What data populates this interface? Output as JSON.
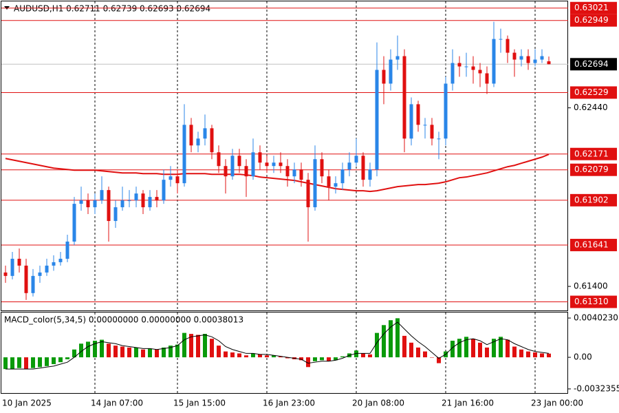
{
  "chart_data": [
    {
      "type": "candlestick",
      "title": "AUDUSD,H1  0.62711 0.62739 0.62693 0.62694",
      "categories": [
        "10 Jan 2025",
        null,
        null,
        null,
        null,
        null,
        null,
        null,
        null,
        null,
        null,
        null,
        null,
        "14 Jan 07:00",
        null,
        null,
        null,
        null,
        null,
        null,
        null,
        null,
        null,
        null,
        null,
        "15 Jan 15:00",
        null,
        null,
        null,
        null,
        null,
        null,
        null,
        null,
        null,
        null,
        null,
        null,
        "16 Jan 23:00",
        null,
        null,
        null,
        null,
        null,
        null,
        null,
        null,
        null,
        null,
        null,
        null,
        "20 Jan 08:00",
        null,
        null,
        null,
        null,
        null,
        null,
        null,
        null,
        null,
        null,
        null,
        null,
        "21 Jan 16:00",
        null,
        null,
        null,
        null,
        null,
        null,
        null,
        null,
        null,
        null,
        null,
        null,
        "23 Jan 00:00",
        null,
        null
      ],
      "open": [
        0.61481,
        0.61461,
        0.61561,
        0.61521,
        0.61361,
        0.61461,
        0.61481,
        0.61521,
        0.61541,
        0.61561,
        0.61661,
        0.61881,
        0.61901,
        0.61861,
        0.61901,
        0.61961,
        0.61781,
        0.61861,
        0.61901,
        0.61901,
        0.61941,
        0.61861,
        0.61921,
        0.61901,
        0.62021,
        0.62041,
        0.62001,
        0.62341,
        0.62221,
        0.62261,
        0.62321,
        0.62181,
        0.62101,
        0.62041,
        0.62161,
        0.62101,
        0.62041,
        0.62181,
        0.62121,
        0.62101,
        0.62121,
        0.62101,
        0.62041,
        0.62081,
        0.62021,
        0.61861,
        0.62141,
        0.62041,
        0.61981,
        0.62001,
        0.62081,
        0.62121,
        0.62161,
        0.62021,
        0.62081,
        0.62661,
        0.62581,
        0.62721,
        0.62741,
        0.62261,
        0.62461,
        0.62341,
        0.62341,
        0.62261,
        0.62261,
        0.62581,
        0.62701,
        0.62681,
        0.62681,
        0.62661,
        0.62641,
        0.62581,
        0.62841,
        0.62841,
        0.62761,
        0.62721,
        0.62741,
        0.62701,
        0.62721,
        0.62711
      ],
      "high": [
        0.61521,
        0.61601,
        0.61621,
        0.61561,
        0.61501,
        0.61521,
        0.61561,
        0.61581,
        0.61601,
        0.61701,
        0.61921,
        0.61981,
        0.61941,
        0.61941,
        0.62041,
        0.61981,
        0.61901,
        0.61981,
        0.61961,
        0.61981,
        0.61961,
        0.61961,
        0.61961,
        0.62081,
        0.62101,
        0.62081,
        0.62461,
        0.62381,
        0.62301,
        0.62401,
        0.62341,
        0.62221,
        0.62141,
        0.62201,
        0.62201,
        0.62141,
        0.62261,
        0.62221,
        0.62161,
        0.62161,
        0.62181,
        0.62141,
        0.62121,
        0.62121,
        0.62061,
        0.62221,
        0.62181,
        0.62081,
        0.62041,
        0.62121,
        0.62181,
        0.62261,
        0.62181,
        0.62121,
        0.62821,
        0.62741,
        0.62781,
        0.62861,
        0.62781,
        0.62501,
        0.62481,
        0.62381,
        0.62381,
        0.62301,
        0.62621,
        0.62781,
        0.62741,
        0.62761,
        0.62741,
        0.62701,
        0.62681,
        0.62941,
        0.62901,
        0.62861,
        0.62781,
        0.62781,
        0.62781,
        0.62781,
        0.62781,
        0.62739
      ],
      "low": [
        0.61421,
        0.61441,
        0.61481,
        0.61321,
        0.61341,
        0.61421,
        0.61461,
        0.61491,
        0.61521,
        0.61541,
        0.61641,
        0.61841,
        0.61821,
        0.61821,
        0.61881,
        0.61661,
        0.61741,
        0.61841,
        0.61861,
        0.61861,
        0.61821,
        0.61841,
        0.61861,
        0.61881,
        0.61981,
        0.61941,
        0.61981,
        0.62181,
        0.62181,
        0.62221,
        0.62141,
        0.62061,
        0.61941,
        0.62021,
        0.62061,
        0.61921,
        0.62021,
        0.62081,
        0.62061,
        0.62061,
        0.62061,
        0.61981,
        0.62001,
        0.61981,
        0.61661,
        0.61841,
        0.62001,
        0.61901,
        0.61941,
        0.61961,
        0.62041,
        0.62101,
        0.61981,
        0.61981,
        0.62041,
        0.62461,
        0.62541,
        0.62661,
        0.62181,
        0.62221,
        0.62301,
        0.62261,
        0.62221,
        0.62141,
        0.62221,
        0.62541,
        0.62621,
        0.62621,
        0.62581,
        0.62561,
        0.62521,
        0.62561,
        0.62761,
        0.62701,
        0.62621,
        0.62681,
        0.62661,
        0.62681,
        0.62701,
        0.62693
      ],
      "close": [
        0.61461,
        0.61561,
        0.61521,
        0.61361,
        0.61461,
        0.61481,
        0.61521,
        0.61541,
        0.61561,
        0.61661,
        0.61881,
        0.61901,
        0.61861,
        0.61901,
        0.61961,
        0.61781,
        0.61861,
        0.61901,
        0.61901,
        0.61941,
        0.61861,
        0.61921,
        0.61901,
        0.62021,
        0.62041,
        0.62001,
        0.62341,
        0.62221,
        0.62261,
        0.62321,
        0.62181,
        0.62101,
        0.62041,
        0.62161,
        0.62101,
        0.62041,
        0.62181,
        0.62121,
        0.62101,
        0.62121,
        0.62101,
        0.62041,
        0.62081,
        0.62021,
        0.61861,
        0.62141,
        0.62041,
        0.61981,
        0.62001,
        0.62081,
        0.62121,
        0.62161,
        0.62021,
        0.62081,
        0.62661,
        0.62581,
        0.62721,
        0.62741,
        0.62261,
        0.62461,
        0.62341,
        0.62341,
        0.62261,
        0.62261,
        0.62581,
        0.62701,
        0.62681,
        0.62681,
        0.62661,
        0.62641,
        0.62581,
        0.62841,
        0.62841,
        0.62761,
        0.62721,
        0.62741,
        0.62701,
        0.62721,
        0.62741,
        0.62694
      ],
      "up_color": "#2a86e8",
      "down_color": "#e01010",
      "lines": [
        {
          "color": "#e01010",
          "values": [
            0.62145,
            0.62137,
            0.62129,
            0.62121,
            0.62113,
            0.62105,
            0.62097,
            0.62089,
            0.62085,
            0.62081,
            0.62077,
            0.62077,
            0.62077,
            0.62077,
            0.62073,
            0.62069,
            0.62065,
            0.62061,
            0.62061,
            0.62061,
            0.62057,
            0.62057,
            0.62057,
            0.62053,
            0.62053,
            0.62053,
            0.62057,
            0.62057,
            0.62057,
            0.62057,
            0.62053,
            0.62053,
            0.62053,
            0.62053,
            0.62053,
            0.62049,
            0.62045,
            0.62037,
            0.62033,
            0.62029,
            0.62025,
            0.62021,
            0.62017,
            0.62009,
            0.62001,
            0.61993,
            0.61985,
            0.61977,
            0.61969,
            0.61965,
            0.61961,
            0.61957,
            0.61957,
            0.61953,
            0.61957,
            0.61965,
            0.61973,
            0.61981,
            0.61985,
            0.61989,
            0.61993,
            0.61993,
            0.61997,
            0.62001,
            0.62009,
            0.62021,
            0.62033,
            0.62037,
            0.62045,
            0.62053,
            0.62061,
            0.62073,
            0.62085,
            0.62097,
            0.62105,
            0.62117,
            0.62129,
            0.62141,
            0.62153,
            0.62169
          ]
        }
      ],
      "levels": [
        0.63021,
        0.62949,
        0.62529,
        0.62171,
        0.62079,
        0.61902,
        0.61641,
        {
          "value": 0.6131,
          "label": "0.61310"
        }
      ],
      "level_color": "#e01010",
      "last_price": 0.62694,
      "ylim": [
        0.6126,
        0.6306
      ],
      "yticks": [
        {
          "value": 0.6244,
          "label": "0.62440"
        },
        {
          "value": 0.614,
          "label": "0.61400"
        }
      ]
    },
    {
      "type": "macd",
      "title": "MACD_color(5,34,5) 0.00000000 0.00000000 0.00038013",
      "values": [
        -0.0012,
        -0.0012,
        -0.0011,
        -0.0012,
        -0.0011,
        -0.001,
        -0.0009,
        -0.0007,
        -0.0005,
        -0.0002,
        0.0008,
        0.0014,
        0.0016,
        0.0017,
        0.0018,
        0.0014,
        0.0012,
        0.0011,
        0.001,
        0.001,
        0.0008,
        0.0009,
        0.0008,
        0.001,
        0.0012,
        0.0013,
        0.0025,
        0.0024,
        0.0023,
        0.0024,
        0.0019,
        0.0012,
        0.0006,
        0.0005,
        0.0004,
        0.0002,
        0.0004,
        0.0003,
        0.0002,
        0.0002,
        0.0001,
        -0.0001,
        -0.0002,
        -0.0003,
        -0.001,
        -0.0004,
        -0.0003,
        -0.0004,
        -0.0003,
        0.0001,
        0.0004,
        0.0007,
        0.0004,
        0.0003,
        0.0025,
        0.0033,
        0.0038,
        0.004,
        0.0022,
        0.0015,
        0.001,
        0.0006,
        0,
        -0.0006,
        0.0006,
        0.0017,
        0.0019,
        0.0021,
        0.0019,
        0.0015,
        0.001,
        0.0019,
        0.0021,
        0.0018,
        0.0011,
        0.0008,
        0.0006,
        0.0005,
        0.0004,
        0.00038013
      ],
      "up_color": "#0a9a0a",
      "down_color": "#e01010",
      "signal": {
        "color": "#000000",
        "values": [
          -0.0012,
          -0.0012,
          -0.0012,
          -0.0012,
          -0.0012,
          -0.0011,
          -0.001,
          -0.0009,
          -0.0007,
          -0.0005,
          0,
          0.0006,
          0.0011,
          0.0014,
          0.0016,
          0.0015,
          0.0014,
          0.0012,
          0.0011,
          0.001,
          0.0009,
          0.0009,
          0.0008,
          0.0009,
          0.001,
          0.0012,
          0.0018,
          0.0021,
          0.0022,
          0.0023,
          0.0021,
          0.0017,
          0.0011,
          0.0008,
          0.0006,
          0.0004,
          0.0004,
          0.0003,
          0.0003,
          0.0002,
          0.0001,
          0,
          -0.0001,
          -0.0002,
          -0.0006,
          -0.0005,
          -0.0004,
          -0.0004,
          -0.0003,
          -0.0001,
          0.0002,
          0.0004,
          0.0004,
          0.0004,
          0.0015,
          0.0024,
          0.0031,
          0.0036,
          0.0029,
          0.0022,
          0.0016,
          0.0011,
          0.0005,
          -0.0001,
          0.0003,
          0.001,
          0.0015,
          0.0018,
          0.0019,
          0.0017,
          0.0013,
          0.0016,
          0.0019,
          0.0018,
          0.0014,
          0.0011,
          0.0008,
          0.0006,
          0.0005,
          0.0004
        ]
      },
      "ylim": [
        -0.00366,
        0.00459
      ],
      "yticks": [
        {
          "value": 0.004023,
          "label": "0.0040230"
        },
        {
          "value": 0,
          "label": "0.00"
        },
        {
          "value": -0.0032355,
          "label": "-0.0032355"
        }
      ]
    }
  ]
}
